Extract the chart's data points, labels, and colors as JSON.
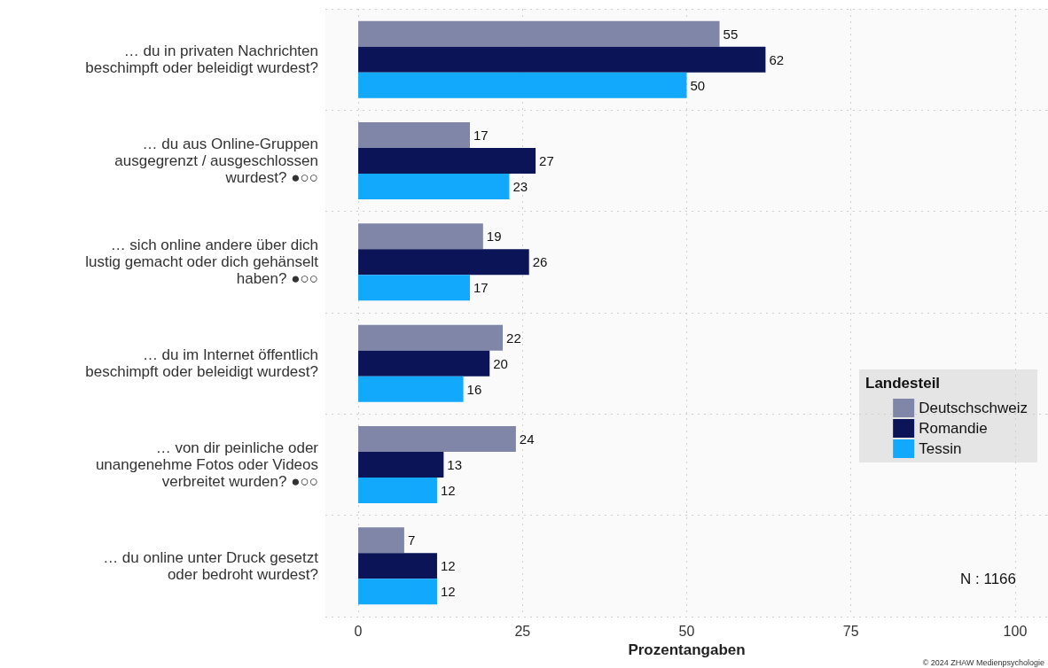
{
  "chart_data": {
    "type": "bar",
    "orientation": "horizontal",
    "xlabel": "Prozentangaben",
    "legend_title": "Landesteil",
    "legend": "right",
    "categories": [
      "… du in privaten Nachrichten\nbeschimpft oder beleidigt wurdest?",
      "… du aus Online-Gruppen\nausgegrenzt / ausgeschlossen\nwurdest? ●○○",
      "… sich online andere über dich\nlustig gemacht oder dich gehänselt\nhaben? ●○○",
      "… du im Internet öffentlich\nbeschimpft oder beleidigt wurdest?",
      "… von dir peinliche oder\nunangenehme Fotos oder Videos\nverbreitet wurden? ●○○",
      "… du online unter Druck gesetzt\noder bedroht wurdest?"
    ],
    "series": [
      {
        "name": "Deutschschweiz",
        "color": "#7f86a8",
        "values": [
          55,
          17,
          19,
          22,
          24,
          7
        ]
      },
      {
        "name": "Romandie",
        "color": "#0b1457",
        "values": [
          62,
          27,
          26,
          20,
          13,
          12
        ]
      },
      {
        "name": "Tessin",
        "color": "#12a8fb",
        "values": [
          50,
          23,
          17,
          16,
          12,
          12
        ]
      }
    ],
    "xlim": [
      -5,
      105
    ],
    "xticks": [
      0,
      25,
      50,
      75,
      100
    ],
    "grid": true,
    "data_labels": true,
    "annotations": [
      "N : 1166",
      "© 2024 ZHAW Medienpsychologie"
    ]
  }
}
